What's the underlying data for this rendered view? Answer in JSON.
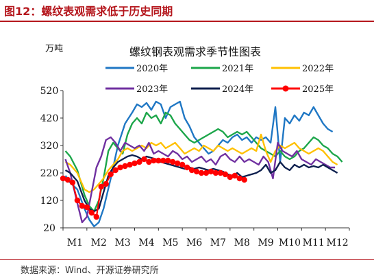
{
  "figure_title": "图12：螺纹表观需求低于历史同期",
  "source_note": "数据来源：Wind、开源证券研究所",
  "chart_data": {
    "type": "line",
    "title": "螺纹钢表观需求季节性图表",
    "unit_label": "万吨",
    "xlabel": "",
    "ylabel": "",
    "ylim": [
      20,
      520
    ],
    "yticks": [
      20,
      120,
      220,
      320,
      420,
      520
    ],
    "xticks": [
      "M1",
      "M2",
      "M3",
      "M4",
      "M5",
      "M6",
      "M7",
      "M8",
      "M9",
      "M10",
      "M11",
      "M12"
    ],
    "x_range": [
      1,
      13
    ],
    "grid": false,
    "legend": "top, two rows",
    "series": [
      {
        "name": "2020年",
        "color": "#1f77c4",
        "marker": false,
        "x": [
          1.1,
          1.3,
          1.6,
          1.9,
          2.1,
          2.3,
          2.5,
          2.7,
          3.0,
          3.3,
          3.6,
          3.9,
          4.1,
          4.3,
          4.5,
          4.7,
          4.9,
          5.1,
          5.3,
          5.5,
          5.7,
          5.9,
          6.1,
          6.3,
          6.5,
          6.7,
          6.9,
          7.1,
          7.3,
          7.5,
          7.7,
          7.9,
          8.1,
          8.3,
          8.5,
          8.7,
          8.9,
          9.1,
          9.3,
          9.5,
          9.7,
          9.9,
          10.1,
          10.3,
          10.5,
          10.7,
          10.9,
          11.1,
          11.3,
          11.5,
          11.7,
          11.9,
          12.1,
          12.3
        ],
        "y": [
          210,
          185,
          160,
          90,
          50,
          25,
          40,
          90,
          200,
          320,
          400,
          440,
          470,
          460,
          475,
          450,
          480,
          470,
          420,
          460,
          470,
          480,
          420,
          390,
          350,
          330,
          310,
          290,
          300,
          320,
          340,
          330,
          350,
          360,
          340,
          350,
          330,
          350,
          340,
          350,
          330,
          460,
          260,
          420,
          400,
          430,
          410,
          440,
          430,
          460,
          430,
          400,
          380,
          370
        ]
      },
      {
        "name": "2021年",
        "color": "#1ca64a",
        "marker": false,
        "x": [
          1.1,
          1.3,
          1.6,
          1.9,
          2.1,
          2.3,
          2.5,
          2.7,
          2.9,
          3.1,
          3.3,
          3.5,
          3.7,
          3.9,
          4.1,
          4.3,
          4.5,
          4.7,
          4.9,
          5.1,
          5.3,
          5.5,
          5.7,
          5.9,
          6.1,
          6.3,
          6.5,
          6.7,
          6.9,
          7.1,
          7.3,
          7.5,
          7.7,
          7.9,
          8.1,
          8.3,
          8.5,
          8.7,
          8.9,
          9.1,
          9.3,
          9.5,
          9.7,
          9.9,
          10.1,
          10.3,
          10.5,
          10.7,
          10.9,
          11.1,
          11.3,
          11.5,
          11.7,
          11.9,
          12.1,
          12.3,
          12.5,
          12.7
        ],
        "y": [
          300,
          280,
          230,
          140,
          100,
          80,
          120,
          200,
          300,
          330,
          310,
          290,
          360,
          400,
          420,
          400,
          440,
          420,
          430,
          400,
          440,
          430,
          400,
          380,
          360,
          340,
          330,
          340,
          350,
          360,
          370,
          380,
          370,
          350,
          360,
          370,
          360,
          370,
          350,
          330,
          310,
          300,
          290,
          280,
          300,
          280,
          270,
          280,
          300,
          310,
          330,
          350,
          340,
          320,
          310,
          290,
          280,
          260
        ]
      },
      {
        "name": "2022年",
        "color": "#ffc000",
        "marker": false,
        "x": [
          1.1,
          1.3,
          1.6,
          1.9,
          2.1,
          2.3,
          2.5,
          2.7,
          2.9,
          3.1,
          3.3,
          3.5,
          3.7,
          3.9,
          4.1,
          4.3,
          4.5,
          4.7,
          4.9,
          5.1,
          5.3,
          5.5,
          5.7,
          5.9,
          6.1,
          6.3,
          6.5,
          6.7,
          6.9,
          7.1,
          7.3,
          7.5,
          7.7,
          7.9,
          8.1,
          8.3,
          8.5,
          8.7,
          8.9,
          9.1,
          9.3,
          9.5,
          9.7,
          9.9,
          10.1,
          10.3,
          10.5,
          10.7,
          10.9,
          11.1,
          11.3,
          11.5,
          11.7,
          11.9,
          12.1,
          12.3,
          12.5
        ],
        "y": [
          260,
          250,
          220,
          160,
          150,
          160,
          180,
          200,
          230,
          250,
          270,
          300,
          310,
          300,
          310,
          320,
          310,
          330,
          320,
          330,
          310,
          320,
          330,
          310,
          290,
          300,
          310,
          300,
          320,
          310,
          300,
          320,
          310,
          300,
          310,
          300,
          290,
          300,
          310,
          300,
          360,
          300,
          260,
          300,
          320,
          310,
          320,
          330,
          310,
          300,
          290,
          300,
          310,
          300,
          280,
          260,
          250
        ]
      },
      {
        "name": "2023年",
        "color": "#7030a0",
        "marker": false,
        "x": [
          1.1,
          1.3,
          1.6,
          1.8,
          2.0,
          2.2,
          2.4,
          2.6,
          2.8,
          3.0,
          3.2,
          3.4,
          3.6,
          3.8,
          4.0,
          4.2,
          4.4,
          4.6,
          4.8,
          5.0,
          5.2,
          5.4,
          5.6,
          5.8,
          6.0,
          6.2,
          6.4,
          6.6,
          6.8,
          7.0,
          7.2,
          7.4,
          7.6,
          7.8,
          8.0,
          8.2,
          8.4,
          8.6,
          8.8,
          9.0,
          9.2,
          9.4,
          9.6,
          9.8,
          10.0,
          10.2,
          10.4,
          10.6,
          10.8,
          11.0,
          11.2,
          11.4,
          11.6,
          11.8,
          12.0,
          12.2,
          12.4
        ],
        "y": [
          270,
          220,
          110,
          40,
          60,
          150,
          240,
          280,
          340,
          350,
          330,
          300,
          330,
          320,
          310,
          320,
          300,
          330,
          290,
          300,
          290,
          280,
          300,
          290,
          270,
          280,
          260,
          270,
          280,
          260,
          270,
          250,
          280,
          290,
          270,
          260,
          280,
          260,
          270,
          260,
          250,
          280,
          260,
          200,
          330,
          300,
          290,
          280,
          300,
          270,
          260,
          250,
          270,
          260,
          250,
          240,
          240
        ]
      },
      {
        "name": "2024年",
        "color": "#0d1f4e",
        "marker": false,
        "x": [
          1.1,
          1.3,
          1.6,
          1.9,
          2.1,
          2.3,
          2.5,
          2.7,
          2.9,
          3.1,
          3.3,
          3.5,
          3.7,
          3.9,
          4.1,
          4.3,
          4.5,
          4.7,
          4.9,
          5.1,
          5.3,
          5.5,
          5.7,
          5.9,
          6.1,
          6.3,
          6.5,
          6.7,
          6.9,
          7.1,
          7.3,
          7.5,
          7.7,
          7.9,
          8.1,
          8.3,
          8.5,
          8.7,
          8.9,
          9.1,
          9.3,
          9.5,
          9.7,
          9.9,
          10.1,
          10.3,
          10.5,
          10.7,
          10.9,
          11.1,
          11.3,
          11.5,
          11.7,
          11.9,
          12.1,
          12.3,
          12.5
        ],
        "y": [
          230,
          220,
          190,
          120,
          90,
          80,
          90,
          150,
          210,
          240,
          260,
          270,
          280,
          285,
          280,
          270,
          280,
          275,
          270,
          260,
          255,
          250,
          245,
          240,
          235,
          240,
          235,
          240,
          235,
          230,
          235,
          230,
          225,
          215,
          210,
          220,
          205,
          210,
          215,
          220,
          230,
          250,
          220,
          230,
          260,
          240,
          230,
          250,
          240,
          250,
          240,
          245,
          240,
          250,
          240,
          230,
          220
        ]
      },
      {
        "name": "2025年",
        "color": "#ff0000",
        "marker": true,
        "x": [
          1.0,
          1.2,
          1.4,
          1.6,
          1.8,
          2.0,
          2.2,
          2.4,
          2.6,
          2.8,
          3.0,
          3.2,
          3.4,
          3.6,
          3.8,
          4.0,
          4.2,
          4.4,
          4.6,
          4.8,
          5.0,
          5.2,
          5.4,
          5.6,
          5.8,
          6.0,
          6.2,
          6.4,
          6.6,
          6.8,
          7.0,
          7.2,
          7.4,
          7.6,
          7.8,
          8.0,
          8.2,
          8.4,
          8.6
        ],
        "y": [
          200,
          195,
          185,
          120,
          100,
          95,
          75,
          60,
          170,
          180,
          215,
          230,
          240,
          245,
          250,
          255,
          260,
          270,
          260,
          265,
          265,
          265,
          265,
          260,
          255,
          250,
          240,
          230,
          225,
          220,
          220,
          225,
          220,
          220,
          215,
          205,
          210,
          200,
          195
        ]
      }
    ]
  }
}
